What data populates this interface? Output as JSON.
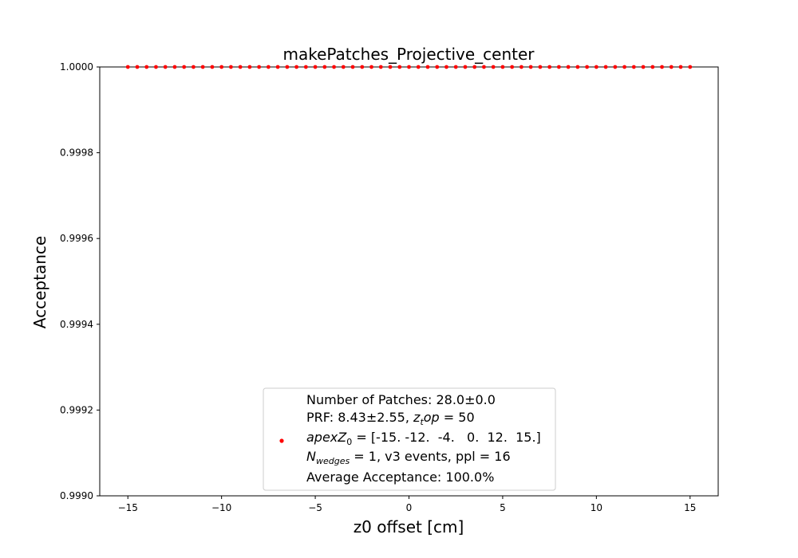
{
  "chart_data": {
    "type": "scatter",
    "title": "makePatches_Projective_center",
    "xlabel": "z0 offset [cm]",
    "ylabel": "Acceptance",
    "xlim": [
      -16.5,
      16.5
    ],
    "ylim": [
      0.999,
      1.0
    ],
    "x_ticks": [
      -15,
      -10,
      -5,
      0,
      5,
      10,
      15
    ],
    "x_tick_labels": [
      "−15",
      "−10",
      "−5",
      "0",
      "5",
      "10",
      "15"
    ],
    "y_ticks": [
      0.999,
      0.9992,
      0.9994,
      0.9996,
      0.9998,
      1.0
    ],
    "y_tick_labels": [
      "0.9990",
      "0.9992",
      "0.9994",
      "0.9996",
      "0.9998",
      "1.0000"
    ],
    "grid": false,
    "legend_position": "lower-center",
    "series": [
      {
        "color": "#ff0000",
        "x": [
          -15.0,
          -14.5,
          -14.0,
          -13.5,
          -13.0,
          -12.5,
          -12.0,
          -11.5,
          -11.0,
          -10.5,
          -10.0,
          -9.5,
          -9.0,
          -8.5,
          -8.0,
          -7.5,
          -7.0,
          -6.5,
          -6.0,
          -5.5,
          -5.0,
          -4.5,
          -4.0,
          -3.5,
          -3.0,
          -2.5,
          -2.0,
          -1.5,
          -1.0,
          -0.5,
          0.0,
          0.5,
          1.0,
          1.5,
          2.0,
          2.5,
          3.0,
          3.5,
          4.0,
          4.5,
          5.0,
          5.5,
          6.0,
          6.5,
          7.0,
          7.5,
          8.0,
          8.5,
          9.0,
          9.5,
          10.0,
          10.5,
          11.0,
          11.5,
          12.0,
          12.5,
          13.0,
          13.5,
          14.0,
          14.5,
          15.0
        ],
        "y_constant": 1.0
      }
    ],
    "legend": {
      "marker_color": "#ff0000",
      "lines": [
        {
          "segments": [
            {
              "text": "Number of Patches: 28.0±0.0"
            }
          ]
        },
        {
          "segments": [
            {
              "text": "PRF: 8.43±2.55, "
            },
            {
              "text": "z",
              "italic": true
            },
            {
              "text": "t",
              "italic": true,
              "sub": true
            },
            {
              "text": "op",
              "italic": true
            },
            {
              "text": " = 50"
            }
          ]
        },
        {
          "segments": [
            {
              "text": "apexZ",
              "italic": true
            },
            {
              "text": "0",
              "sub": true
            },
            {
              "text": " = [-15. -12.  -4.   0.  12.  15.]"
            }
          ]
        },
        {
          "segments": [
            {
              "text": "N",
              "italic": true
            },
            {
              "text": "wedges",
              "italic": true,
              "sub": true
            },
            {
              "text": " = 1, v3 events, ppl = 16"
            }
          ]
        },
        {
          "segments": [
            {
              "text": "Average Acceptance: 100.0%"
            }
          ]
        }
      ]
    }
  }
}
